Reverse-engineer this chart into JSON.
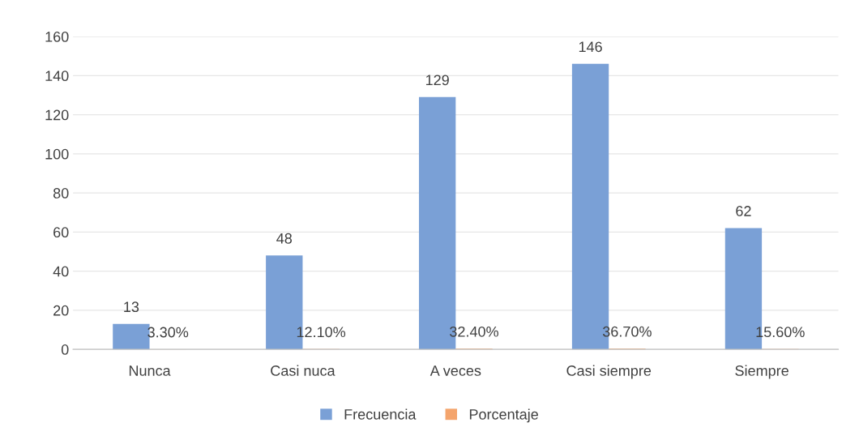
{
  "chart_data": {
    "type": "bar",
    "categories": [
      "Nunca",
      "Casi nuca",
      "A veces",
      "Casi siempre",
      "Siempre"
    ],
    "series": [
      {
        "name": "Frecuencia",
        "color": "#7aa0d6",
        "values": [
          13,
          48,
          129,
          146,
          62
        ],
        "value_labels": [
          "13",
          "48",
          "129",
          "146",
          "62"
        ]
      },
      {
        "name": "Porcentaje",
        "color": "#f4a46c",
        "values": [
          0.033,
          0.121,
          0.324,
          0.367,
          0.156
        ],
        "value_labels": [
          "3.30%",
          "12.10%",
          "32.40%",
          "36.70%",
          "15.60%"
        ]
      }
    ],
    "ylim": [
      0,
      160
    ],
    "yticks": [
      0,
      20,
      40,
      60,
      80,
      100,
      120,
      140,
      160
    ],
    "grid": "y",
    "legend": "bottom"
  }
}
